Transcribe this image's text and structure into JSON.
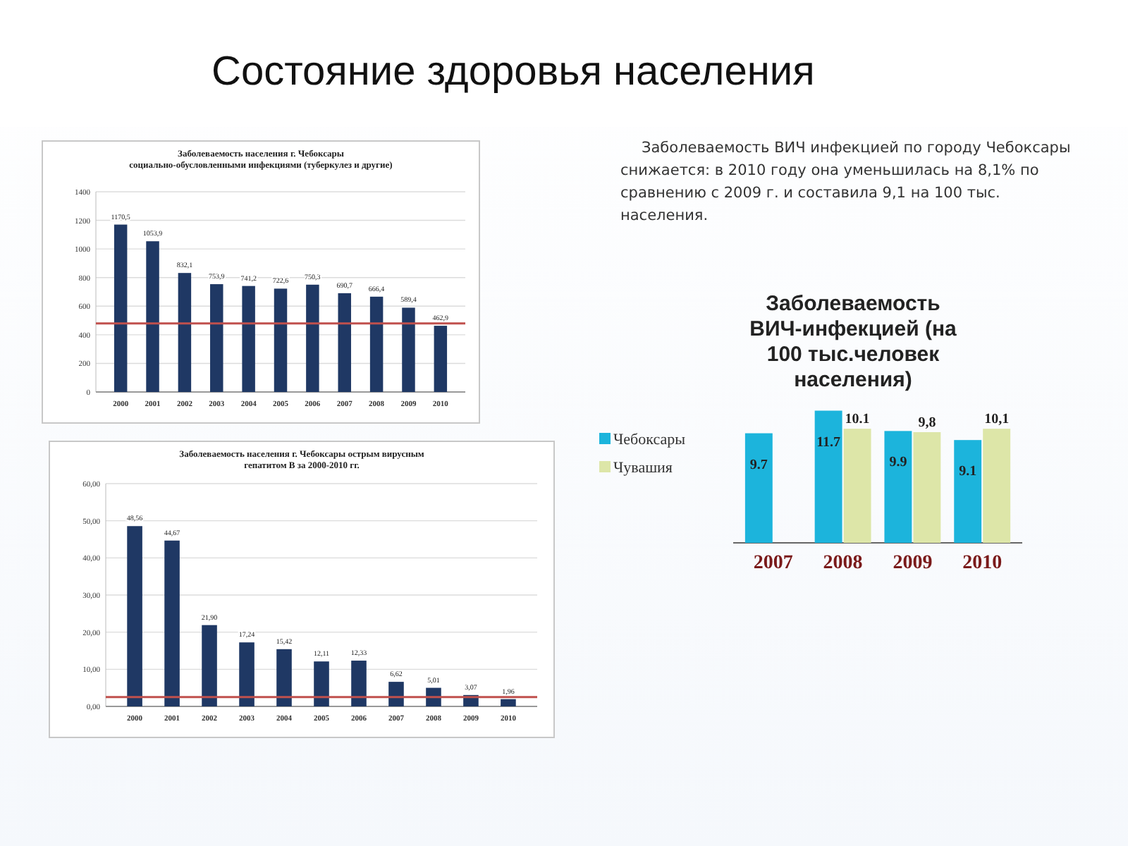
{
  "chart_data": [
    {
      "type": "bar",
      "title": "Заболеваемость населения г. Чебоксары социально-обусловленными инфекциями (туберкулез и другие)",
      "annotations": [
        "Состояние здоровья населения"
      ],
      "categories": [
        "2000",
        "2001",
        "2002",
        "2003",
        "2004",
        "2005",
        "2006",
        "2007",
        "2008",
        "2009",
        "2010"
      ],
      "series": [
        {
          "color": "#1f3864",
          "values": [
            1170.5,
            1053.9,
            832.1,
            753.9,
            741.2,
            722.6,
            750.3,
            690.7,
            666.4,
            589.4,
            462.9
          ],
          "value_labels": [
            "1170,5",
            "1053,9",
            "832,1",
            "753,9",
            "741,2",
            "722,6",
            "750,3",
            "690,7",
            "666,4",
            "589,4",
            "462,9"
          ]
        }
      ],
      "ylim": [
        0,
        1400
      ],
      "yticks": [
        0,
        200,
        400,
        600,
        800,
        1000,
        1200,
        1400
      ],
      "grid": "y",
      "ref_lines": [
        {
          "axis": "y",
          "value": 480,
          "color": "#c0504d"
        }
      ]
    },
    {
      "type": "bar",
      "title": "Заболеваемость населения г. Чебоксары острым вирусным гепатитом В за 2000-2010 гг.",
      "categories": [
        "2000",
        "2001",
        "2002",
        "2003",
        "2004",
        "2005",
        "2006",
        "2007",
        "2008",
        "2009",
        "2010"
      ],
      "series": [
        {
          "color": "#1f3864",
          "values": [
            48.56,
            44.67,
            21.9,
            17.24,
            15.42,
            12.11,
            12.33,
            6.62,
            5.01,
            3.07,
            1.96
          ],
          "value_labels": [
            "48,56",
            "44,67",
            "21,90",
            "17,24",
            "15,42",
            "12,11",
            "12,33",
            "6,62",
            "5,01",
            "3,07",
            "1,96"
          ]
        }
      ],
      "ylim": [
        0,
        60
      ],
      "yticks": [
        {
          "value": 0,
          "label": "0,00"
        },
        {
          "value": 10,
          "label": "10,00"
        },
        {
          "value": 20,
          "label": "20,00"
        },
        {
          "value": 30,
          "label": "30,00"
        },
        {
          "value": 40,
          "label": "40,00"
        },
        {
          "value": 50,
          "label": "50,00"
        },
        {
          "value": 60,
          "label": "60,00"
        }
      ],
      "grid": "y",
      "ref_lines": [
        {
          "axis": "y",
          "value": 2.5,
          "color": "#c0504d"
        }
      ]
    },
    {
      "type": "bar",
      "title": "Заболеваемость ВИЧ-инфекцией (на 100 тыс.человек населения)",
      "annotations": [
        "Заболеваемость ВИЧ инфекцией по городу Чебоксары снижается: в 2010 году она уменьшилась на 8,1% по сравнению с 2009 г. и составила 9,1 на 100 тыс. населения."
      ],
      "categories": [
        "2007",
        "2008",
        "2009",
        "2010"
      ],
      "legend": "left",
      "series": [
        {
          "name": "Чебоксары",
          "color": "#1cb4dc",
          "values": [
            9.7,
            11.7,
            9.9,
            9.1
          ],
          "value_labels": [
            "9.7",
            "11.7",
            "9.9",
            "9.1"
          ]
        },
        {
          "name": "Чувашия",
          "color": "#dde6a8",
          "values": [
            null,
            10.1,
            9.8,
            10.1
          ],
          "value_labels": [
            null,
            "10.1",
            "9,8",
            "10,1"
          ]
        }
      ]
    }
  ]
}
